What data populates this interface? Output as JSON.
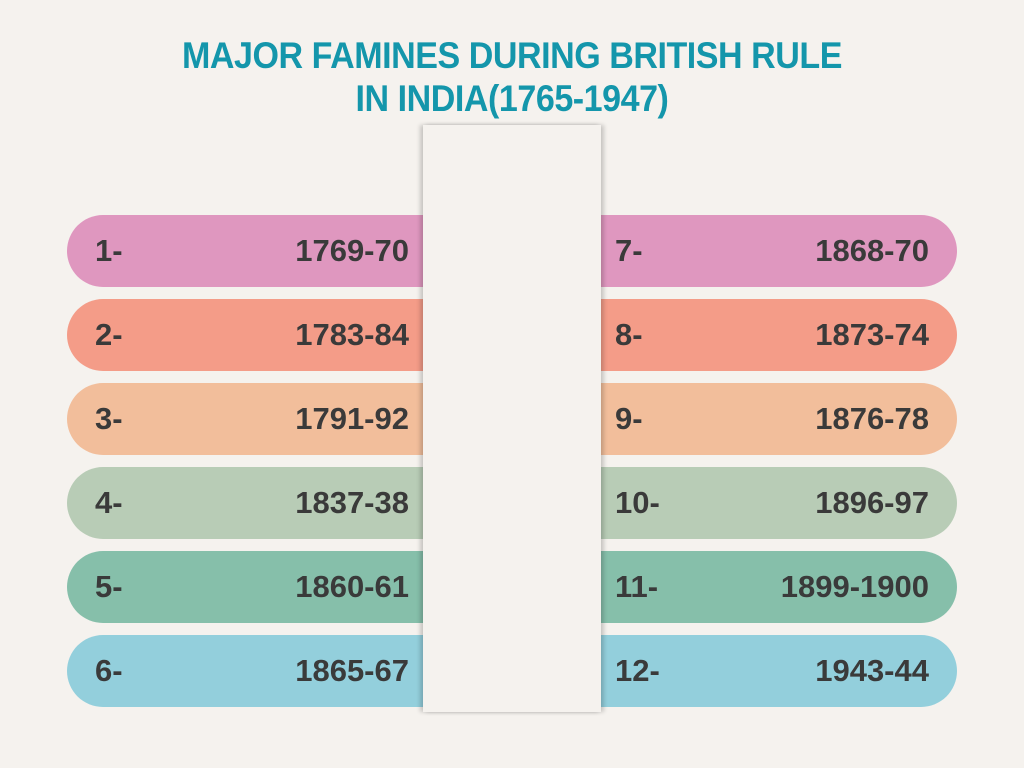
{
  "title": {
    "line1": "MAJOR FAMINES DURING BRITISH RULE",
    "line2": "IN INDIA(1765-1947)"
  },
  "colors": {
    "title": "#1496ab",
    "text": "#3a3a3a",
    "background": "#f5f2ee",
    "row_colors": [
      "#df97bf",
      "#f49c88",
      "#f2be9b",
      "#b8ccb6",
      "#86bfaa",
      "#93cfdc"
    ]
  },
  "left_column": [
    {
      "number": "1-",
      "years": "1769-70"
    },
    {
      "number": "2-",
      "years": "1783-84"
    },
    {
      "number": "3-",
      "years": "1791-92"
    },
    {
      "number": "4-",
      "years": "1837-38"
    },
    {
      "number": "5-",
      "years": "1860-61"
    },
    {
      "number": "6-",
      "years": "1865-67"
    }
  ],
  "right_column": [
    {
      "number": "7-",
      "years": "1868-70"
    },
    {
      "number": "8-",
      "years": "1873-74"
    },
    {
      "number": "9-",
      "years": "1876-78"
    },
    {
      "number": "10-",
      "years": "1896-97"
    },
    {
      "number": "11-",
      "years": "1899-1900"
    },
    {
      "number": "12-",
      "years": "1943-44"
    }
  ]
}
